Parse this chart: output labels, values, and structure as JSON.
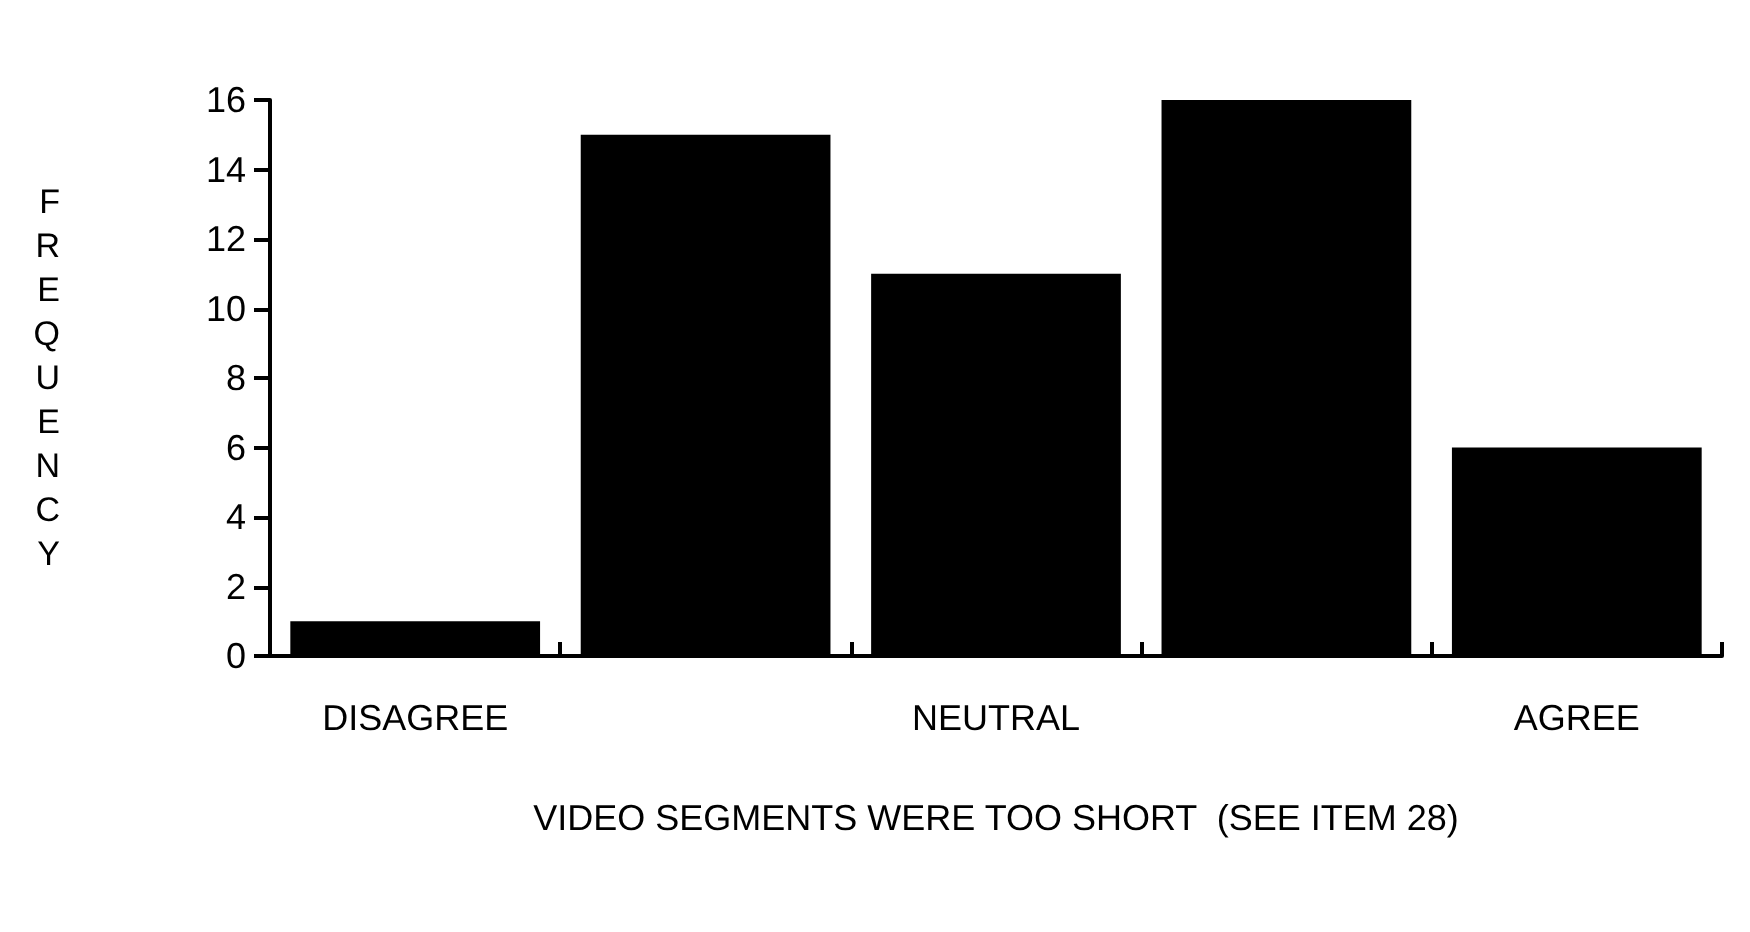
{
  "chart_data": {
    "type": "bar",
    "xlabel": "VIDEO SEGMENTS WERE TOO SHORT  (SEE ITEM 28)",
    "ylabel": "FREQUENCY",
    "categories": [
      "DISAGREE",
      null,
      "NEUTRAL",
      null,
      "AGREE"
    ],
    "values": [
      1,
      15,
      11,
      16,
      6
    ],
    "color": "#000000",
    "ylim": [
      0,
      16
    ],
    "yticks": [
      0,
      2,
      4,
      6,
      8,
      10,
      12,
      14,
      16
    ],
    "grid": false
  }
}
